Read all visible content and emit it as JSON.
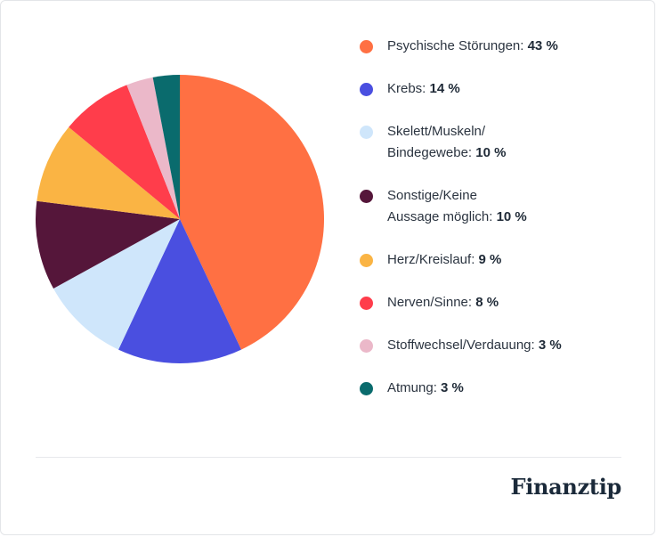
{
  "chart_data": {
    "type": "pie",
    "slices": [
      {
        "label": "Psychische Störungen",
        "value": 43,
        "display": "43 %",
        "color": "#ff7043"
      },
      {
        "label": "Krebs",
        "value": 14,
        "display": "14 %",
        "color": "#4a4fe0"
      },
      {
        "label": "Skelett/Muskeln/ Bindegewebe",
        "lines": [
          "Skelett/Muskeln/",
          "Bindegewebe"
        ],
        "value": 10,
        "display": "10 %",
        "color": "#cfe6fb"
      },
      {
        "label": "Sonstige/Keine Aussage möglich",
        "lines": [
          "Sonstige/Keine",
          "Aussage möglich"
        ],
        "value": 10,
        "display": "10 %",
        "color": "#55163a"
      },
      {
        "label": "Herz/Kreislauf",
        "value": 9,
        "display": "9 %",
        "color": "#fab444"
      },
      {
        "label": "Nerven/Sinne",
        "value": 8,
        "display": "8 %",
        "color": "#ff3d4b"
      },
      {
        "label": "Stoffwechsel/Verdauung",
        "value": 3,
        "display": "3 %",
        "color": "#ebb8c9"
      },
      {
        "label": "Atmung",
        "value": 3,
        "display": "3 %",
        "color": "#0a6b6d"
      }
    ],
    "legend_position": "right"
  },
  "brand": {
    "logo": "Finanztip"
  }
}
